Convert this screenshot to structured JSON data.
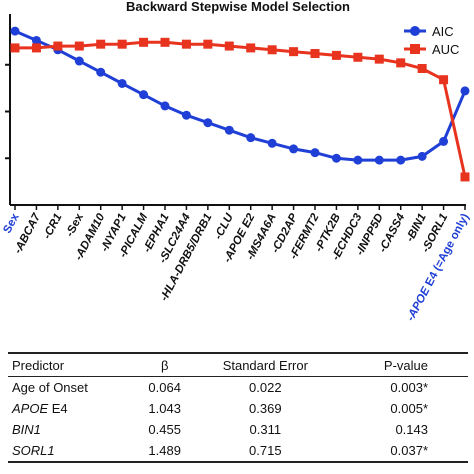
{
  "chart_data": {
    "type": "line",
    "title": "Backward Stepwise Model Selection",
    "categories": [
      "Sex",
      "-ABCA7",
      "-CR1",
      "-Sex",
      "-ADAM10",
      "-NYAP1",
      "-PICALM",
      "-EPHA1",
      "-SLC24A4",
      "-HLA-DRB5/DRB1",
      "-CLU",
      "-APOE E2",
      "-MS4A6A",
      "-CD2AP",
      "-FERMT2",
      "-PTK2B",
      "-ECHDC3",
      "-INPP5D",
      "-CASS4",
      "-BIN1",
      "-SORL1",
      "-APOE E4 (=Age only)"
    ],
    "category_styles": [
      "blue",
      "italic",
      "italic",
      "normal",
      "italic",
      "italic",
      "italic",
      "italic",
      "italic",
      "italic",
      "italic",
      "italic",
      "italic",
      "italic",
      "italic",
      "italic",
      "italic",
      "italic",
      "italic",
      "italic",
      "italic",
      "blue-italic-mixed"
    ],
    "series": [
      {
        "name": "AIC",
        "color": "#1f3fd6",
        "marker": "circle",
        "values": [
          0.93,
          0.88,
          0.83,
          0.77,
          0.71,
          0.65,
          0.59,
          0.53,
          0.48,
          0.44,
          0.4,
          0.36,
          0.33,
          0.3,
          0.28,
          0.25,
          0.24,
          0.24,
          0.24,
          0.26,
          0.34,
          0.61
        ]
      },
      {
        "name": "AUC",
        "color": "#e8331f",
        "marker": "square",
        "values": [
          0.84,
          0.84,
          0.85,
          0.85,
          0.86,
          0.86,
          0.87,
          0.87,
          0.86,
          0.86,
          0.85,
          0.84,
          0.83,
          0.82,
          0.81,
          0.8,
          0.79,
          0.78,
          0.76,
          0.73,
          0.67,
          0.15
        ]
      }
    ],
    "ylim": [
      0,
      1
    ],
    "legend": "top-right",
    "grid": false
  },
  "table": {
    "headers": [
      "Predictor",
      "β",
      "Standard Error",
      "P-value"
    ],
    "rows": [
      {
        "predictor": "Age of Onset",
        "predictor_italic": "",
        "predictor_rest": "",
        "beta": "0.064",
        "se": "0.022",
        "p": "0.003*"
      },
      {
        "predictor": "",
        "predictor_italic": "APOE",
        "predictor_rest": " E4",
        "beta": "1.043",
        "se": "0.369",
        "p": "0.005*"
      },
      {
        "predictor": "",
        "predictor_italic": "BIN1",
        "predictor_rest": "",
        "beta": "0.455",
        "se": "0.311",
        "p": "0.143"
      },
      {
        "predictor": "",
        "predictor_italic": "SORL1",
        "predictor_rest": "",
        "beta": "1.489",
        "se": "0.715",
        "p": "0.037*"
      }
    ]
  }
}
